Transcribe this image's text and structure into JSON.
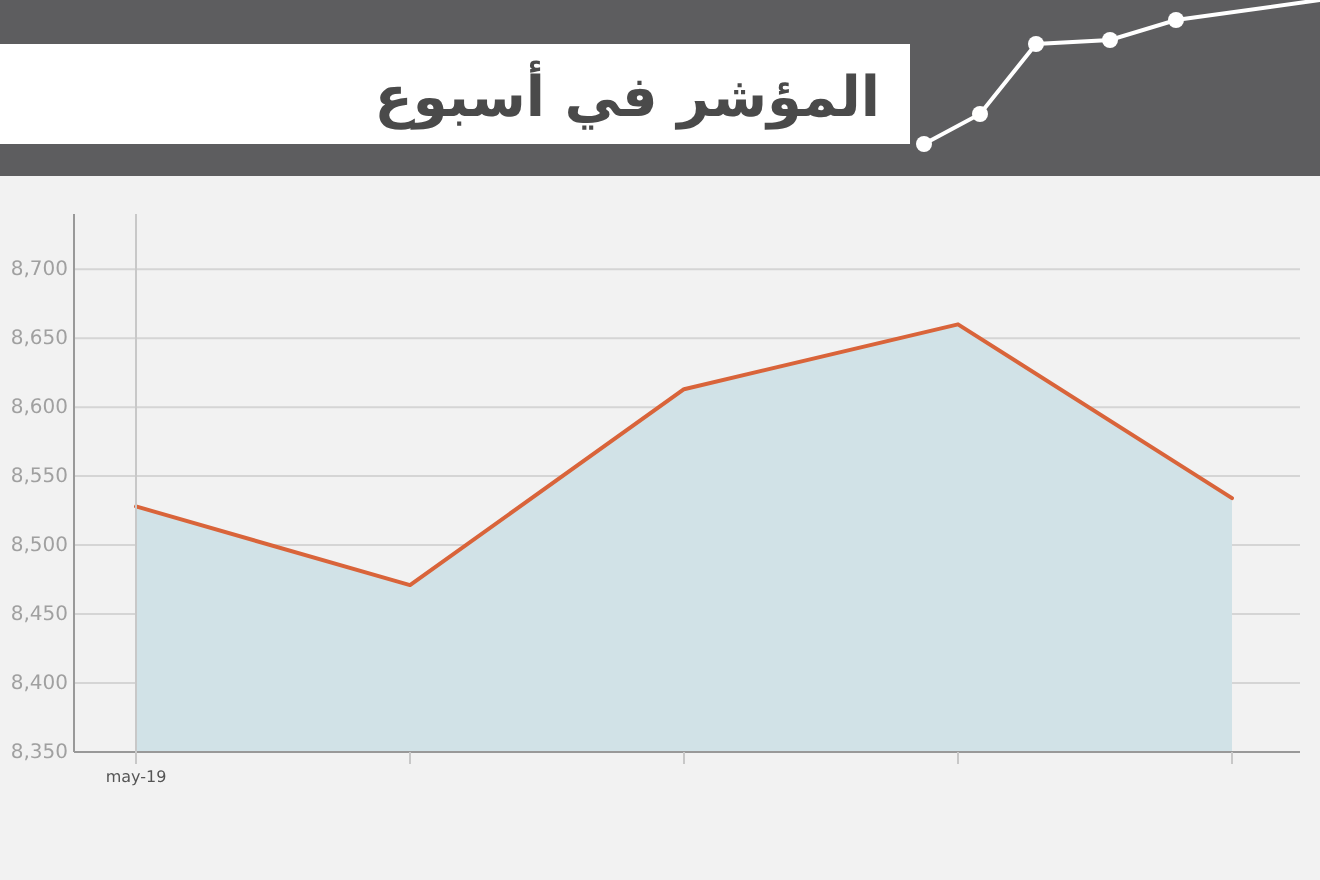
{
  "chart_data": {
    "type": "area",
    "title": "المؤشر في أسبوع",
    "categories": [
      "may-19",
      null,
      null,
      null,
      null
    ],
    "series": [
      {
        "color": "#d9643a",
        "values": [
          8528,
          8471,
          8613,
          8660,
          8534
        ]
      }
    ],
    "ylim": [
      8350,
      8740
    ],
    "yticks": [
      {
        "value": 8350,
        "label": "8,350"
      },
      {
        "value": 8400,
        "label": "8,400"
      },
      {
        "value": 8450,
        "label": "8,450"
      },
      {
        "value": 8500,
        "label": "8,500"
      },
      {
        "value": 8550,
        "label": "8,550"
      },
      {
        "value": 8600,
        "label": "8,600"
      },
      {
        "value": 8650,
        "label": "8,650"
      },
      {
        "value": 8700,
        "label": "8,700"
      }
    ],
    "grid": "y",
    "marker": "none",
    "line_style": "solid"
  }
}
